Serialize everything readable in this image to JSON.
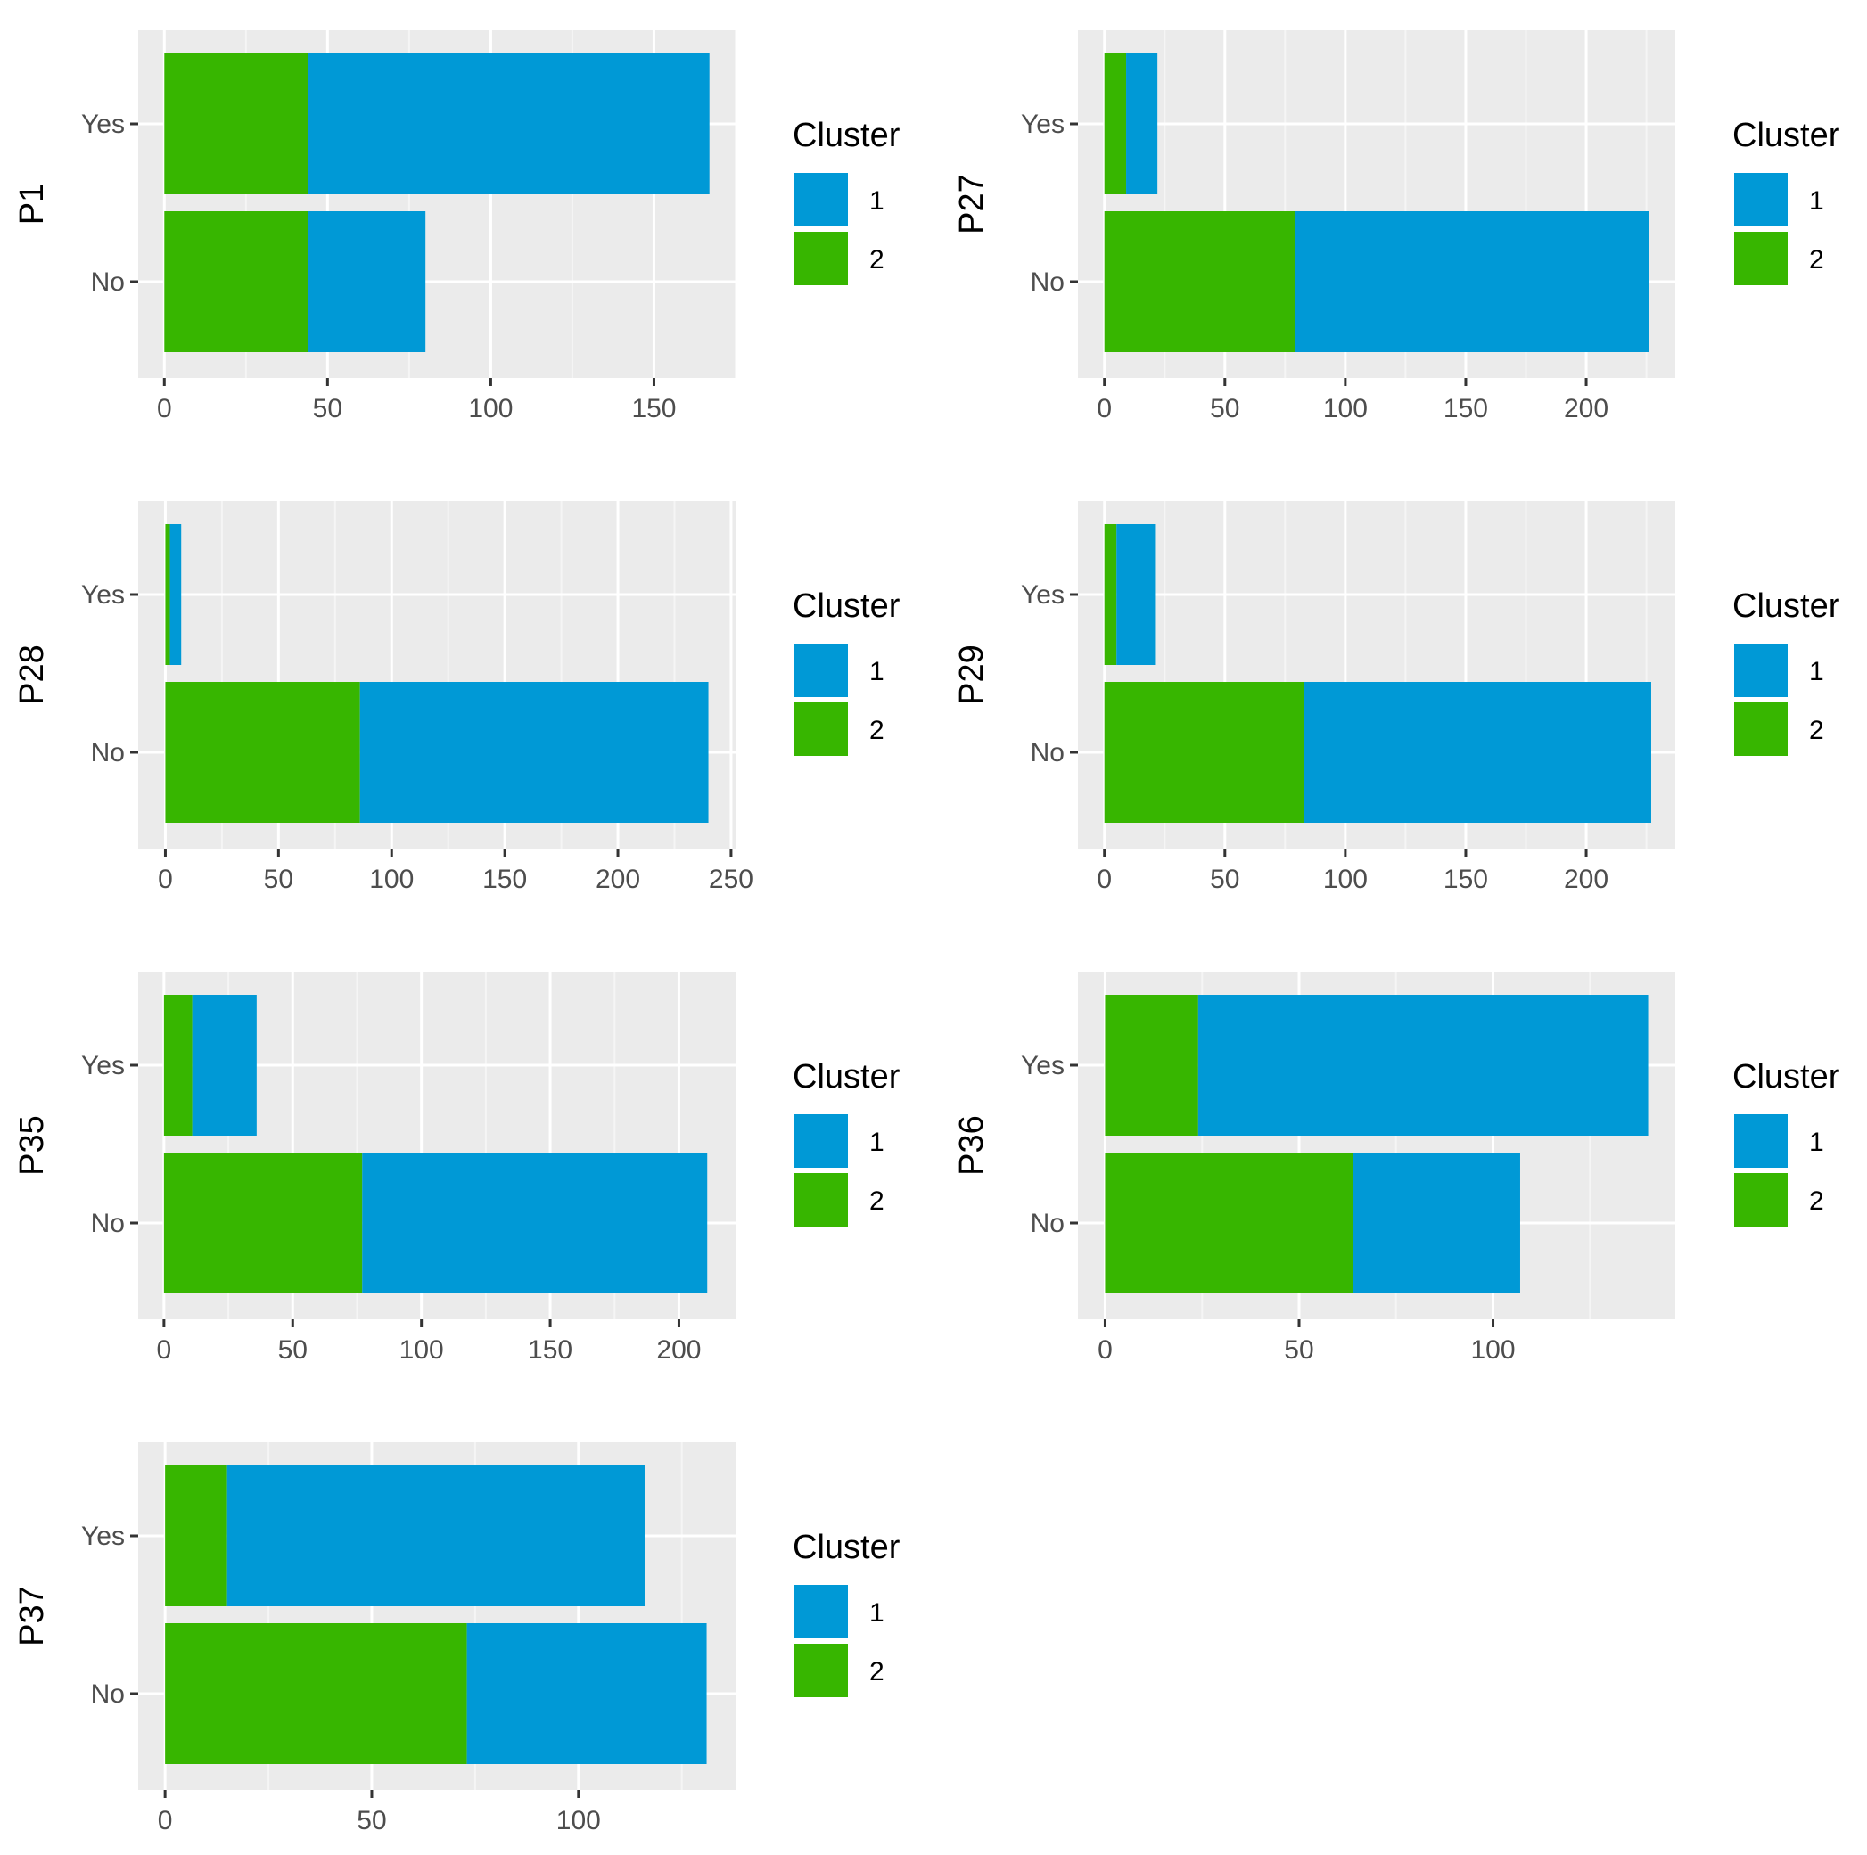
{
  "colors": {
    "panel_bg": "#ebebeb",
    "grid_major": "#ffffff",
    "grid_minor": "#f5f5f5",
    "tick": "#333333",
    "cluster_1": "#0099D6",
    "cluster_2": "#37B600"
  },
  "chart_data": [
    {
      "type": "bar",
      "orientation": "horizontal",
      "stacked": true,
      "ylabel": "P1",
      "categories": [
        "Yes",
        "No"
      ],
      "series": [
        {
          "name": "2",
          "values": [
            44,
            44
          ]
        },
        {
          "name": "1",
          "values": [
            123,
            36
          ]
        }
      ],
      "xlim": [
        -8,
        175
      ],
      "xticks": [
        0,
        50,
        100,
        150
      ],
      "legend_title": "Cluster",
      "legend_entries": [
        "1",
        "2"
      ]
    },
    {
      "type": "bar",
      "orientation": "horizontal",
      "stacked": true,
      "ylabel": "P27",
      "categories": [
        "Yes",
        "No"
      ],
      "series": [
        {
          "name": "2",
          "values": [
            9,
            79
          ]
        },
        {
          "name": "1",
          "values": [
            13,
            147
          ]
        }
      ],
      "xlim": [
        -11,
        237
      ],
      "xticks": [
        0,
        50,
        100,
        150,
        200
      ],
      "legend_title": "Cluster",
      "legend_entries": [
        "1",
        "2"
      ]
    },
    {
      "type": "bar",
      "orientation": "horizontal",
      "stacked": true,
      "ylabel": "P28",
      "categories": [
        "Yes",
        "No"
      ],
      "series": [
        {
          "name": "2",
          "values": [
            2,
            86
          ]
        },
        {
          "name": "1",
          "values": [
            5,
            154
          ]
        }
      ],
      "xlim": [
        -12,
        252
      ],
      "xticks": [
        0,
        50,
        100,
        150,
        200,
        250
      ],
      "legend_title": "Cluster",
      "legend_entries": [
        "1",
        "2"
      ]
    },
    {
      "type": "bar",
      "orientation": "horizontal",
      "stacked": true,
      "ylabel": "P29",
      "categories": [
        "Yes",
        "No"
      ],
      "series": [
        {
          "name": "2",
          "values": [
            5,
            83
          ]
        },
        {
          "name": "1",
          "values": [
            16,
            144
          ]
        }
      ],
      "xlim": [
        -11,
        237
      ],
      "xticks": [
        0,
        50,
        100,
        150,
        200
      ],
      "legend_title": "Cluster",
      "legend_entries": [
        "1",
        "2"
      ]
    },
    {
      "type": "bar",
      "orientation": "horizontal",
      "stacked": true,
      "ylabel": "P35",
      "categories": [
        "Yes",
        "No"
      ],
      "series": [
        {
          "name": "2",
          "values": [
            11,
            77
          ]
        },
        {
          "name": "1",
          "values": [
            25,
            134
          ]
        }
      ],
      "xlim": [
        -10,
        222
      ],
      "xticks": [
        0,
        50,
        100,
        150,
        200
      ],
      "legend_title": "Cluster",
      "legend_entries": [
        "1",
        "2"
      ]
    },
    {
      "type": "bar",
      "orientation": "horizontal",
      "stacked": true,
      "ylabel": "P36",
      "categories": [
        "Yes",
        "No"
      ],
      "series": [
        {
          "name": "2",
          "values": [
            24,
            64
          ]
        },
        {
          "name": "1",
          "values": [
            116,
            43
          ]
        }
      ],
      "xlim": [
        -7,
        147
      ],
      "xticks": [
        0,
        50,
        100
      ],
      "legend_title": "Cluster",
      "legend_entries": [
        "1",
        "2"
      ]
    },
    {
      "type": "bar",
      "orientation": "horizontal",
      "stacked": true,
      "ylabel": "P37",
      "categories": [
        "Yes",
        "No"
      ],
      "series": [
        {
          "name": "2",
          "values": [
            15,
            73
          ]
        },
        {
          "name": "1",
          "values": [
            101,
            58
          ]
        }
      ],
      "xlim": [
        -6.5,
        138
      ],
      "xticks": [
        0,
        50,
        100
      ],
      "legend_title": "Cluster",
      "legend_entries": [
        "1",
        "2"
      ]
    }
  ]
}
